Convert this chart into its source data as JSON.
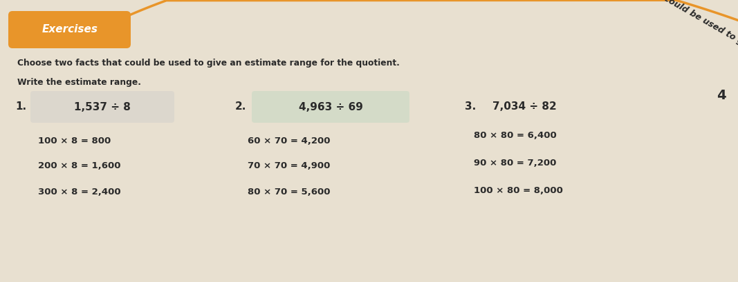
{
  "background_color": "#e8e0d0",
  "page_color": "#f0ebe0",
  "exercises_label": "Exercises",
  "exercises_bg": "#e8952a",
  "instruction_line1": "Choose two facts that could be used to give an estimate range for the quotient.",
  "instruction_line2": "Write the estimate range.",
  "diagonal_text": "Choose two facts that could be used to give an estimate range for the quotient.",
  "num1_label": "1.",
  "num1_problem": "1,537 ÷ 8",
  "num1_facts": [
    "100 × 8 = 800",
    "200 × 8 = 1,600",
    "300 × 8 = 2,400"
  ],
  "num2_label": "2.",
  "num2_problem": "4,963 ÷ 69",
  "num2_facts": [
    "60 × 70 = 4,200",
    "70 × 70 = 4,900",
    "80 × 70 = 5,600"
  ],
  "num3_label": "3.",
  "num3_problem": "7,034 ÷ 82",
  "num3_facts": [
    "80 × 80 = 6,400",
    "90 × 80 = 7,200",
    "100 × 80 = 8,000"
  ],
  "corner_num": "4",
  "orange_color": "#e8952a",
  "text_color": "#2a2a2a",
  "answer_box_color": "#d8d4cc",
  "answer_box2_color": "#c8d8c4"
}
